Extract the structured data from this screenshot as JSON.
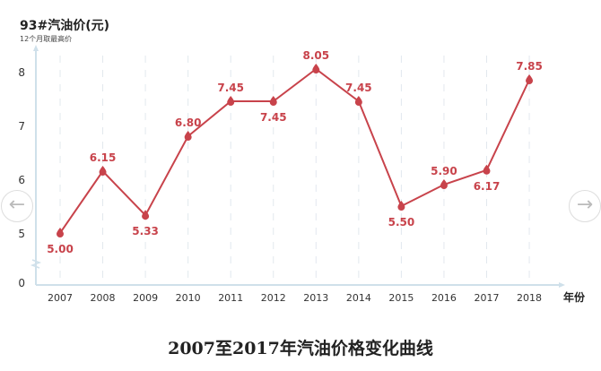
{
  "chart_data": {
    "type": "line",
    "title": "93#汽油价(元)",
    "subtitle": "12个月取最高价",
    "xlabel": "年份",
    "ylabel": "",
    "categories": [
      "2007",
      "2008",
      "2009",
      "2010",
      "2011",
      "2012",
      "2013",
      "2014",
      "2015",
      "2016",
      "2017",
      "2018"
    ],
    "series": [
      {
        "values": [
          5.0,
          6.15,
          5.33,
          6.8,
          7.45,
          7.45,
          8.05,
          7.45,
          5.5,
          5.9,
          6.17,
          7.85
        ]
      }
    ],
    "data_labels": [
      "5.00",
      "6.15",
      "5.33",
      "6.80",
      "7.45",
      "7.45",
      "8.05",
      "7.45",
      "5.50",
      "5.90",
      "6.17",
      "7.85"
    ],
    "yticks": [
      "0",
      "5",
      "6",
      "7",
      "8"
    ],
    "ylim": [
      0,
      8.5
    ],
    "y_axis_break": [
      0,
      5
    ],
    "grid": "vertical dashed",
    "color": "#c8434b",
    "caption": "2007至2017年汽油价格变化曲线"
  },
  "nav": {
    "prev_icon": "arrow-left-icon",
    "next_icon": "arrow-right-icon"
  }
}
